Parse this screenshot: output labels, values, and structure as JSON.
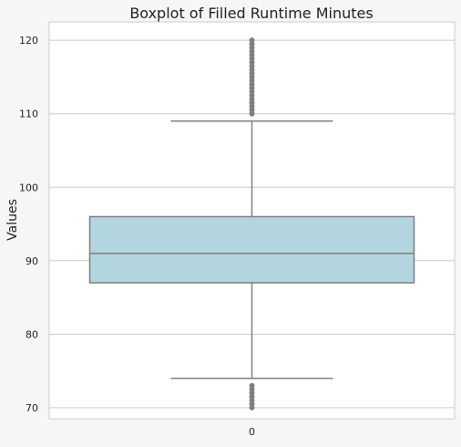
{
  "chart_data": {
    "type": "box",
    "title": "Boxplot of Filled Runtime Minutes",
    "xlabel": "",
    "ylabel": "Values",
    "categories": [
      "0"
    ],
    "ylim": [
      68.5,
      122.5
    ],
    "yticks": [
      70,
      80,
      90,
      100,
      110,
      120
    ],
    "grid": true,
    "box": {
      "category": "0",
      "q1": 87,
      "median": 91,
      "q3": 96,
      "whisker_low": 74,
      "whisker_high": 109,
      "outliers_low": [
        70,
        70.5,
        71,
        71.5,
        72,
        72.5,
        73
      ],
      "outliers_high": [
        110,
        110.5,
        111,
        111.5,
        112,
        112.5,
        113,
        113.5,
        114,
        114.5,
        115,
        115.5,
        116,
        116.5,
        117,
        117.5,
        118,
        118.5,
        119,
        119.5,
        120
      ]
    },
    "colors": {
      "background": "#f6f6f6",
      "plot_background": "#ffffff",
      "box_fill": "#b3d5e0",
      "line": "#808080",
      "grid": "#cccccc",
      "text": "#222222"
    }
  }
}
